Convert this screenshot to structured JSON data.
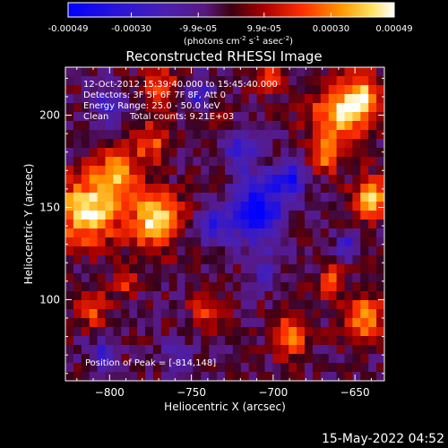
{
  "colorbar": {
    "ticks": [
      "-0.00049",
      "-0.00030",
      "-9.9e-05",
      "9.9e-05",
      "0.00030",
      "0.00049"
    ],
    "tick_values": [
      -0.00049,
      -0.0003,
      -9.9e-05,
      9.9e-05,
      0.0003,
      0.00049
    ],
    "range": [
      -0.00049,
      0.00049
    ],
    "units_main": "(photons cm",
    "units_exp1": "-2",
    "units_mid": " s",
    "units_exp2": "-1",
    "units_mid2": " asec",
    "units_exp3": "-2",
    "units_end": ")"
  },
  "chart_data": {
    "type": "heatmap",
    "title": "Reconstructed RHESSI Image",
    "xlabel": "Heliocentric X (arcsec)",
    "ylabel": "Heliocentric Y (arcsec)",
    "xlim": [
      -827,
      -632
    ],
    "ylim": [
      56,
      226
    ],
    "xticks": [
      -800,
      -750,
      -700,
      -650
    ],
    "xtick_labels": [
      "−800",
      "−750",
      "−700",
      "−650"
    ],
    "yticks": [
      100,
      150,
      200
    ],
    "ytick_labels": [
      "100",
      "150",
      "200"
    ],
    "grid": false,
    "colormap": "blue-purple-red-yellow-white",
    "grid_size": [
      40,
      35
    ],
    "hot_regions": [
      {
        "x": -814,
        "y": 148,
        "r": 18,
        "strength": 1.0
      },
      {
        "x": -772,
        "y": 143,
        "r": 15,
        "strength": 0.95
      },
      {
        "x": -795,
        "y": 168,
        "r": 13,
        "strength": 0.75
      },
      {
        "x": -775,
        "y": 185,
        "r": 10,
        "strength": 0.55
      },
      {
        "x": -660,
        "y": 200,
        "r": 16,
        "strength": 0.85
      },
      {
        "x": -645,
        "y": 210,
        "r": 12,
        "strength": 0.75
      },
      {
        "x": -640,
        "y": 155,
        "r": 11,
        "strength": 0.8
      },
      {
        "x": -668,
        "y": 178,
        "r": 9,
        "strength": 0.55
      },
      {
        "x": -645,
        "y": 90,
        "r": 12,
        "strength": 0.75
      },
      {
        "x": -690,
        "y": 80,
        "r": 11,
        "strength": 0.6
      },
      {
        "x": -665,
        "y": 110,
        "r": 8,
        "strength": 0.55
      },
      {
        "x": -740,
        "y": 95,
        "r": 10,
        "strength": 0.45
      },
      {
        "x": -812,
        "y": 95,
        "r": 10,
        "strength": 0.5
      },
      {
        "x": -790,
        "y": 110,
        "r": 8,
        "strength": 0.4
      },
      {
        "x": -770,
        "y": 215,
        "r": 12,
        "strength": 0.5
      },
      {
        "x": -735,
        "y": 200,
        "r": 8,
        "strength": 0.4
      },
      {
        "x": -700,
        "y": 220,
        "r": 9,
        "strength": 0.4
      }
    ],
    "cold_regions": [
      {
        "x": -710,
        "y": 148,
        "r": 16,
        "strength": 1.0
      },
      {
        "x": -690,
        "y": 165,
        "r": 10,
        "strength": 0.7
      },
      {
        "x": -738,
        "y": 140,
        "r": 9,
        "strength": 0.7
      },
      {
        "x": -720,
        "y": 180,
        "r": 9,
        "strength": 0.6
      },
      {
        "x": -800,
        "y": 205,
        "r": 10,
        "strength": 0.55
      },
      {
        "x": -745,
        "y": 210,
        "r": 9,
        "strength": 0.5
      },
      {
        "x": -705,
        "y": 115,
        "r": 8,
        "strength": 0.45
      },
      {
        "x": -655,
        "y": 130,
        "r": 7,
        "strength": 0.45
      },
      {
        "x": -805,
        "y": 70,
        "r": 8,
        "strength": 0.5
      },
      {
        "x": -760,
        "y": 70,
        "r": 8,
        "strength": 0.35
      }
    ],
    "peak": {
      "x": -814,
      "y": 148
    }
  },
  "annotations": {
    "time_range": "12-Oct-2012 15:39:40.000 to 15:45:40.000",
    "detectors": "Detectors: 3F 5F 6F 7F 8F, Att 0",
    "energy": "Energy Range: 25.0 - 50.0 keV",
    "clean": "Clean",
    "counts": "Total counts: 9.21E+03",
    "peak": "Position of Peak = [-814,148]"
  },
  "footer": {
    "timestamp": "15-May-2022 04:52"
  },
  "colors": {
    "background": "#000000",
    "foreground": "#ffffff"
  }
}
